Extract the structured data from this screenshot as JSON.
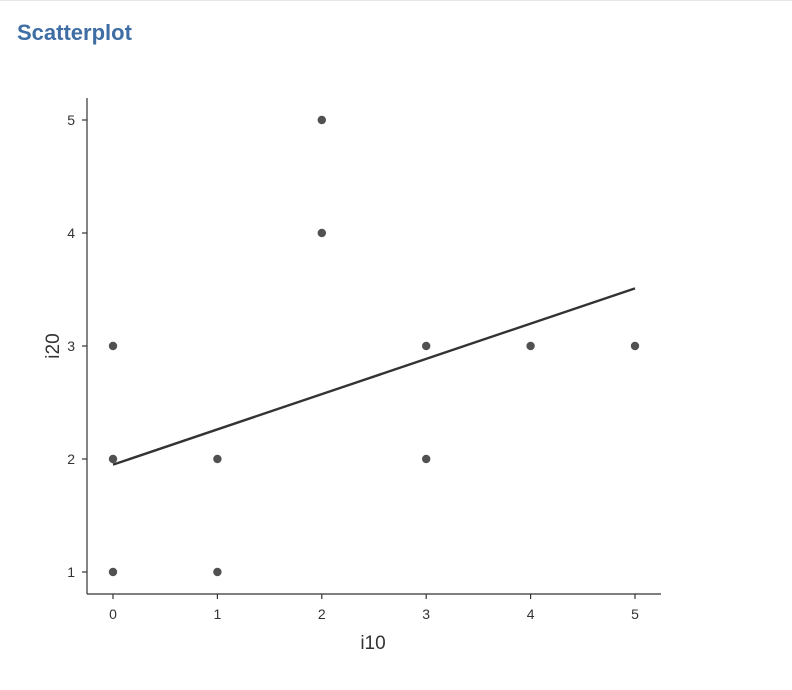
{
  "page": {
    "title": "Scatterplot"
  },
  "colors": {
    "title": "#3e6ea4",
    "points": "#333333",
    "fit_line": "#333333",
    "axis": "#333333"
  },
  "chart_data": {
    "type": "scatter",
    "title": "",
    "xlabel": "i10",
    "ylabel": "i20",
    "xlim": [
      0,
      5
    ],
    "ylim": [
      1,
      5
    ],
    "xticks": [
      0,
      1,
      2,
      3,
      4,
      5
    ],
    "yticks": [
      1,
      2,
      3,
      4,
      5
    ],
    "grid": false,
    "points": [
      {
        "x": 0,
        "y": 1
      },
      {
        "x": 0,
        "y": 2
      },
      {
        "x": 0,
        "y": 3
      },
      {
        "x": 1,
        "y": 1
      },
      {
        "x": 1,
        "y": 2
      },
      {
        "x": 2,
        "y": 4
      },
      {
        "x": 2,
        "y": 5
      },
      {
        "x": 3,
        "y": 2
      },
      {
        "x": 3,
        "y": 3
      },
      {
        "x": 4,
        "y": 3
      },
      {
        "x": 5,
        "y": 3
      }
    ],
    "fit_line": {
      "x": [
        0,
        5
      ],
      "y": [
        1.95,
        3.51
      ]
    }
  }
}
